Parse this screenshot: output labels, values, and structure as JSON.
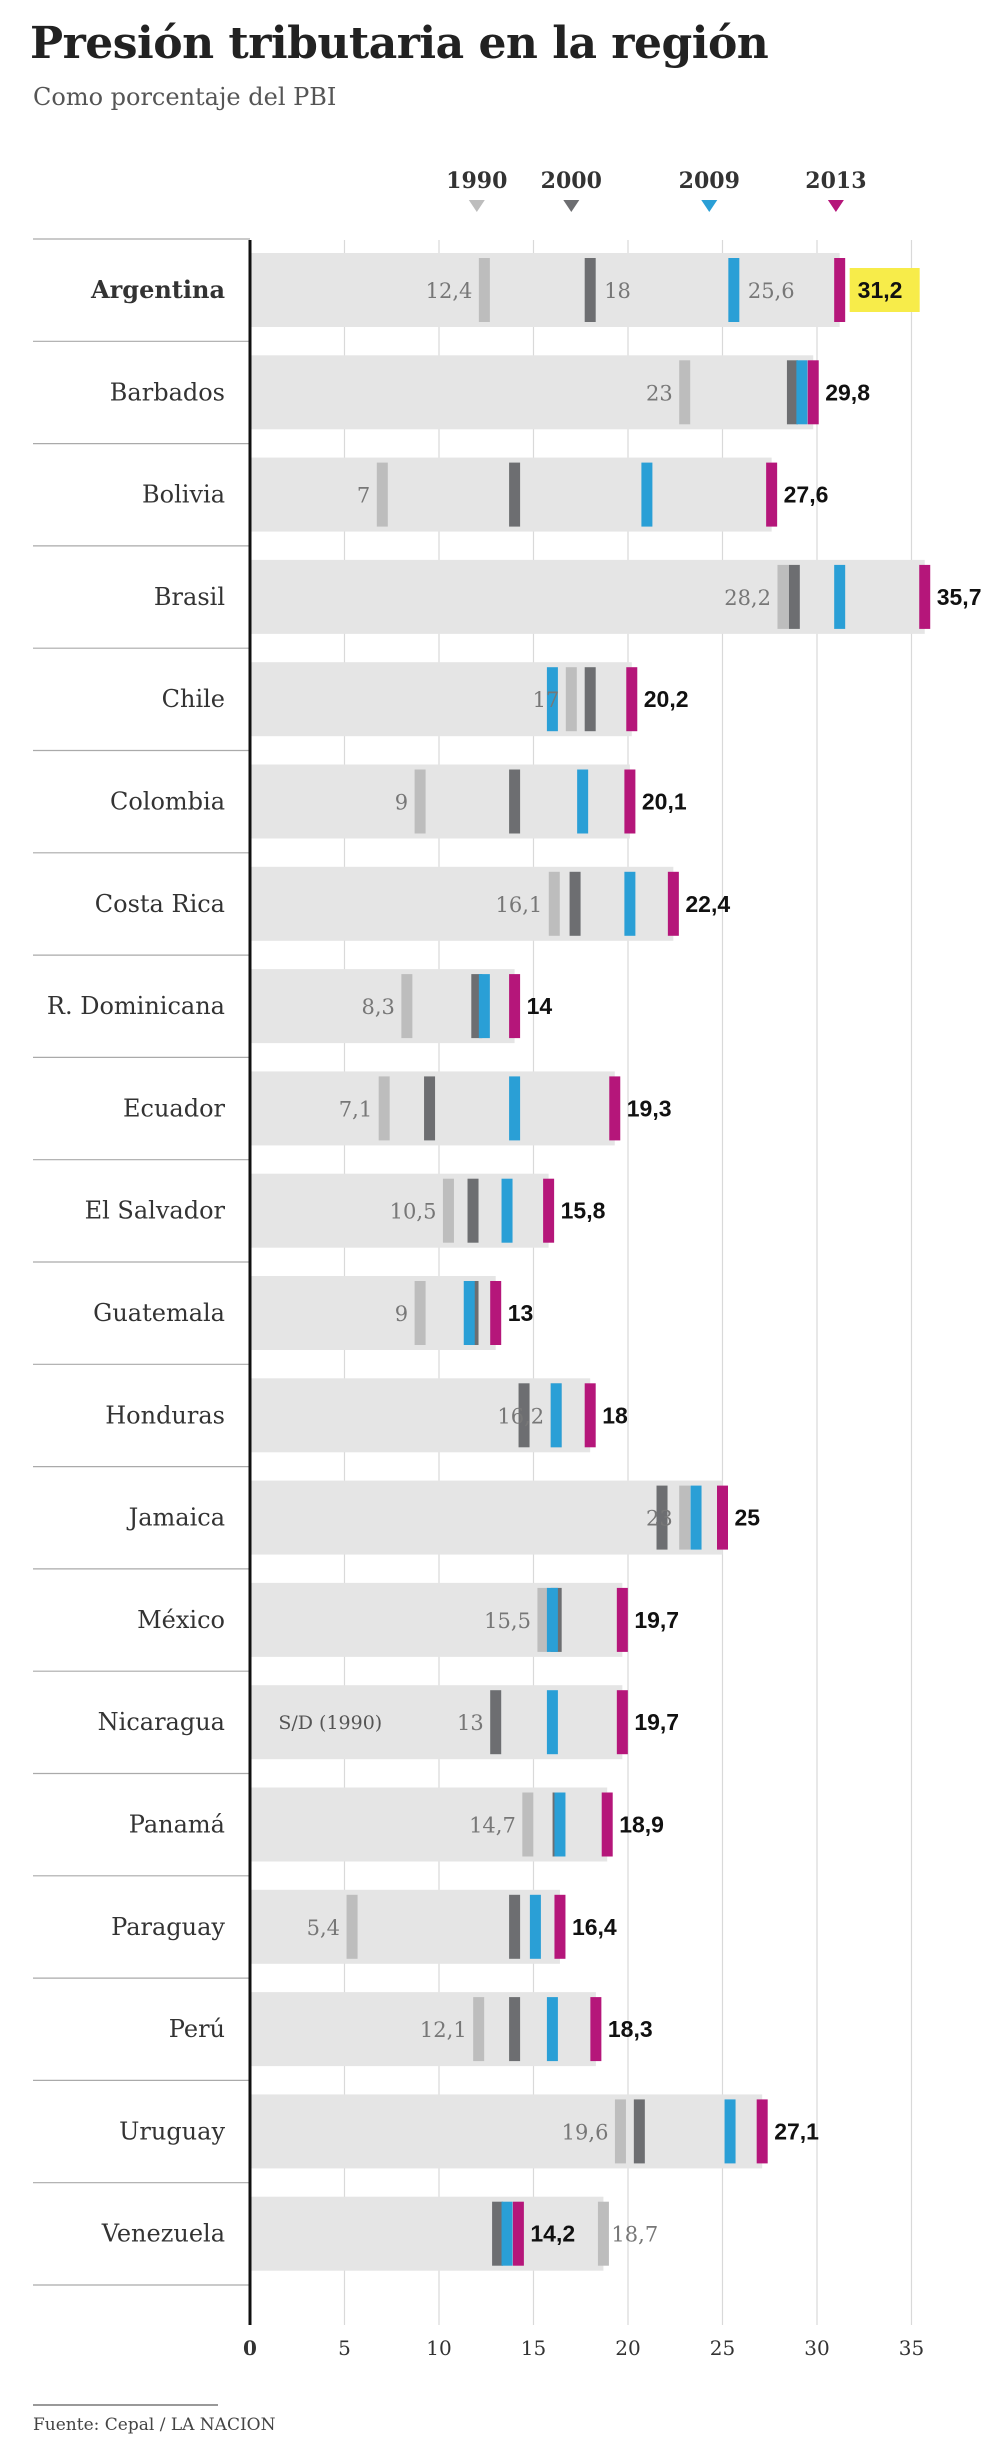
{
  "title": "Presión tributaria en la región",
  "subtitle": "Como porcentaje del PBI",
  "source": "Fuente: Cepal / LA NACION",
  "colors": {
    "1990": "#bdbdbd",
    "2000": "#6d6e71",
    "2009": "#2a9fd6",
    "2013": "#b5167a",
    "highlight": "#f7ec4a",
    "bar_bg": "#e5e5e5"
  },
  "chart_data": {
    "type": "bar",
    "title": "Presión tributaria en la región",
    "subtitle": "Como porcentaje del PBI",
    "xlim": [
      0,
      37
    ],
    "x_ticks": [
      "0",
      "5",
      "10",
      "15",
      "20",
      "25",
      "30",
      "35"
    ],
    "grid": true,
    "legend_position": "top",
    "series": [
      {
        "name": "1990",
        "color": "#bdbdbd"
      },
      {
        "name": "2000",
        "color": "#6d6e71"
      },
      {
        "name": "2009",
        "color": "#2a9fd6"
      },
      {
        "name": "2013",
        "color": "#b5167a"
      }
    ],
    "categories": [
      "Argentina",
      "Barbados",
      "Bolivia",
      "Brasil",
      "Chile",
      "Colombia",
      "Costa Rica",
      "R. Dominicana",
      "Ecuador",
      "El Salvador",
      "Guatemala",
      "Honduras",
      "Jamaica",
      "México",
      "Nicaragua",
      "Panamá",
      "Paraguay",
      "Perú",
      "Uruguay",
      "Venezuela"
    ],
    "rows": [
      {
        "name": "Argentina",
        "v1990": 12.4,
        "v2000": 18.0,
        "v2009": 25.6,
        "v2013": 31.2,
        "label1990": "12,4",
        "label2000": "18",
        "label2009": "25,6",
        "label2013": "31,2",
        "highlight": true,
        "bold": true
      },
      {
        "name": "Barbados",
        "v1990": 23.0,
        "v2000": 28.7,
        "v2009": 29.2,
        "v2013": 29.8,
        "label1990": "23",
        "label2013": "29,8"
      },
      {
        "name": "Bolivia",
        "v1990": 7.0,
        "v2000": 14.0,
        "v2009": 21.0,
        "v2013": 27.6,
        "label1990": "7",
        "label2013": "27,6"
      },
      {
        "name": "Brasil",
        "v1990": 28.2,
        "v2000": 28.8,
        "v2009": 31.2,
        "v2013": 35.7,
        "label1990": "28,2",
        "label2013": "35,7"
      },
      {
        "name": "Chile",
        "v1990": 17.0,
        "v2000": 18.0,
        "v2009": 16.0,
        "v2013": 20.2,
        "label1990": "17",
        "label2013": "20,2"
      },
      {
        "name": "Colombia",
        "v1990": 9.0,
        "v2000": 14.0,
        "v2009": 17.6,
        "v2013": 20.1,
        "label1990": "9",
        "label2013": "20,1"
      },
      {
        "name": "Costa Rica",
        "v1990": 16.1,
        "v2000": 17.2,
        "v2009": 20.1,
        "v2013": 22.4,
        "label1990": "16,1",
        "label2013": "22,4"
      },
      {
        "name": "R. Dominicana",
        "v1990": 8.3,
        "v2000": 12.0,
        "v2009": 12.4,
        "v2013": 14.0,
        "label1990": "8,3",
        "label2013": "14"
      },
      {
        "name": "Ecuador",
        "v1990": 7.1,
        "v2000": 9.5,
        "v2009": 14.0,
        "v2013": 19.3,
        "label1990": "7,1",
        "label2013": "19,3"
      },
      {
        "name": "El Salvador",
        "v1990": 10.5,
        "v2000": 11.8,
        "v2009": 13.6,
        "v2013": 15.8,
        "label1990": "10,5",
        "label2013": "15,8"
      },
      {
        "name": "Guatemala",
        "v1990": 9.0,
        "v2000": 11.8,
        "v2009": 11.6,
        "v2013": 13.0,
        "label1990": "9",
        "label2013": "13"
      },
      {
        "name": "Honduras",
        "v1990": 16.2,
        "v2000": 14.5,
        "v2009": 16.2,
        "v2013": 18.0,
        "label1990": "16,2",
        "label2013": "18"
      },
      {
        "name": "Jamaica",
        "v1990": 23.0,
        "v2000": 21.8,
        "v2009": 23.6,
        "v2013": 25.0,
        "label1990": "23",
        "label2013": "25"
      },
      {
        "name": "México",
        "v1990": 15.5,
        "v2000": 16.2,
        "v2009": 16.0,
        "v2013": 19.7,
        "label1990": "15,5",
        "label2013": "19,7"
      },
      {
        "name": "Nicaragua",
        "v1990": null,
        "v2000": 13.0,
        "v2009": 16.0,
        "v2013": 19.7,
        "label1990": "S/D (1990)",
        "label2000": "13",
        "label2013": "19,7"
      },
      {
        "name": "Panamá",
        "v1990": 14.7,
        "v2000": 16.3,
        "v2009": 16.4,
        "v2013": 18.9,
        "label1990": "14,7",
        "label2013": "18,9"
      },
      {
        "name": "Paraguay",
        "v1990": 5.4,
        "v2000": 14.0,
        "v2009": 15.1,
        "v2013": 16.4,
        "label1990": "5,4",
        "label2013": "16,4"
      },
      {
        "name": "Perú",
        "v1990": 12.1,
        "v2000": 14.0,
        "v2009": 16.0,
        "v2013": 18.3,
        "label1990": "12,1",
        "label2013": "18,3"
      },
      {
        "name": "Uruguay",
        "v1990": 19.6,
        "v2000": 20.6,
        "v2009": 25.4,
        "v2013": 27.1,
        "label1990": "19,6",
        "label2013": "27,1"
      },
      {
        "name": "Venezuela",
        "v1990": 18.7,
        "v2000": 13.1,
        "v2009": 13.6,
        "v2013": 14.2,
        "label1990": "18,7",
        "label2013": "14,2"
      }
    ]
  }
}
